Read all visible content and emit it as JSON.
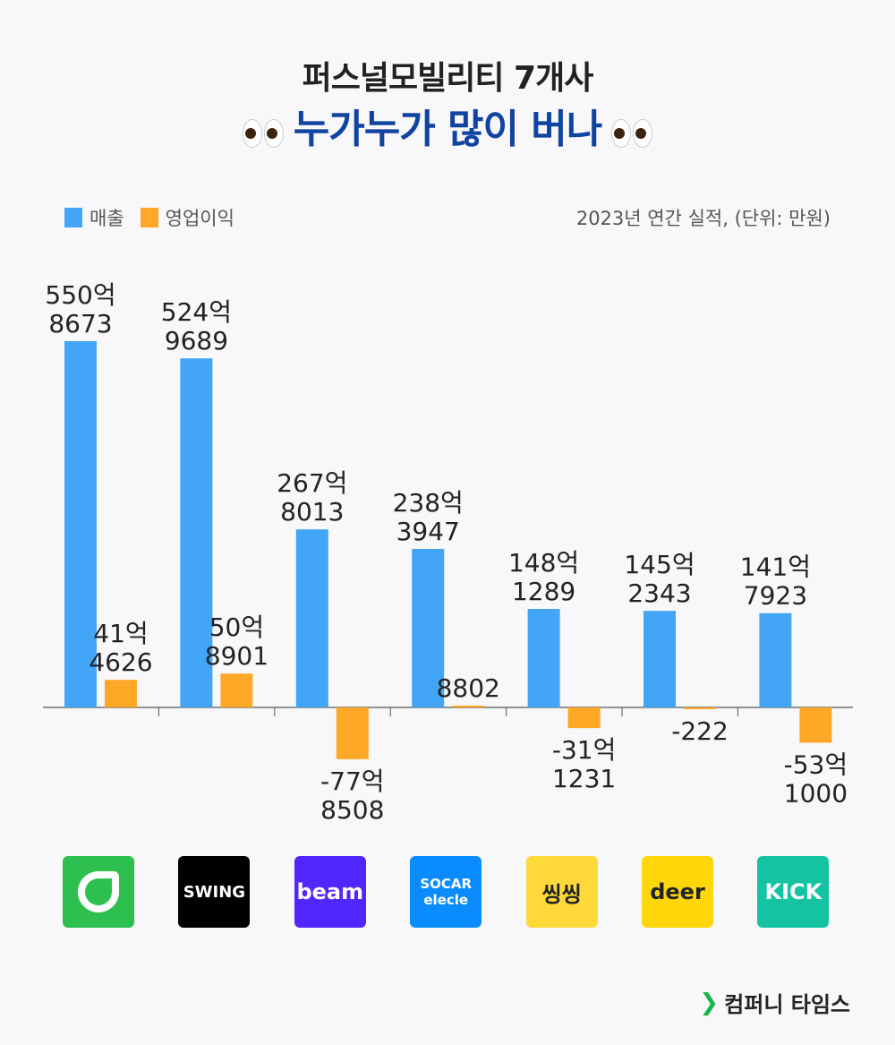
{
  "header": {
    "title_line1": "퍼스널모빌리티 7개사",
    "title_line2": "누가누가 많이 버나",
    "emoji": "eyes-emoji"
  },
  "note": "2023년 연간 실적, (단위: 만원)",
  "footer": {
    "brand": "컴퍼니 타임스",
    "icon": "chevron-right-icon"
  },
  "colors": {
    "revenue": "#42a5f5",
    "operating_profit": "#ffa726",
    "title_accent": "#1144a0"
  },
  "chart_data": {
    "type": "bar",
    "unit": "만원",
    "legend": {
      "placement": "top-left",
      "entries": [
        "매출",
        "영업이익"
      ]
    },
    "categories": [
      "green-leaf-logo",
      "SWING",
      "beam",
      "SOCAR elecle",
      "씽씽",
      "deer",
      "KICK"
    ],
    "series": [
      {
        "name": "매출",
        "values": [
          5508673,
          5249689,
          2678013,
          2383947,
          1481289,
          1452343,
          1417923
        ],
        "labels": [
          [
            "550억",
            "8673"
          ],
          [
            "524억",
            "9689"
          ],
          [
            "267억",
            "8013"
          ],
          [
            "238억",
            "3947"
          ],
          [
            "148억",
            "1289"
          ],
          [
            "145억",
            "2343"
          ],
          [
            "141억",
            "7923"
          ]
        ]
      },
      {
        "name": "영업이익",
        "values": [
          414626,
          508901,
          -778508,
          8802,
          -311231,
          -222,
          -531000
        ],
        "labels": [
          [
            "41억",
            "4626"
          ],
          [
            "50억",
            "8901"
          ],
          [
            "-77억",
            "8508"
          ],
          [
            "8802"
          ],
          [
            "-31억",
            "1231"
          ],
          [
            "-222"
          ],
          [
            "-53억",
            "1000"
          ]
        ]
      }
    ],
    "grid": false
  },
  "logos": [
    {
      "text": "",
      "bg": "#2ec04f",
      "fg": "#fff"
    },
    {
      "text": "SWING",
      "bg": "#000",
      "fg": "#fff"
    },
    {
      "text": "beam",
      "bg": "#5127ff",
      "fg": "#fff"
    },
    {
      "text": "SOCAR elecle",
      "bg": "#0a8cff",
      "fg": "#fff"
    },
    {
      "text": "씽씽",
      "bg": "#ffd83a",
      "fg": "#222"
    },
    {
      "text": "deer",
      "bg": "#ffd60a",
      "fg": "#222"
    },
    {
      "text": "KICK",
      "bg": "#14c3a2",
      "fg": "#fff"
    }
  ]
}
